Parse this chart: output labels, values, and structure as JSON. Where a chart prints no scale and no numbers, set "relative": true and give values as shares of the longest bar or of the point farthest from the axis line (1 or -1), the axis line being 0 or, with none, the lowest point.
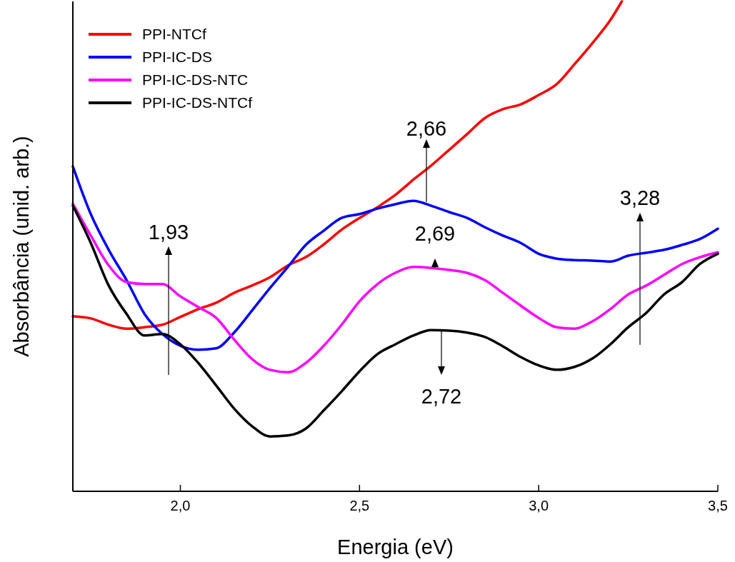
{
  "chart_data": {
    "type": "line",
    "relative": true,
    "xlabel": "Energia (eV)",
    "ylabel": "Absorbância (unid. arb.)",
    "xlim": [
      1.7,
      3.5
    ],
    "xticks": [
      {
        "value": 2.0,
        "label": "2,0"
      },
      {
        "value": 2.5,
        "label": "2,5"
      },
      {
        "value": 3.0,
        "label": "3,0"
      },
      {
        "value": 3.5,
        "label": "3,5"
      }
    ],
    "x": [
      1.7,
      1.75,
      1.8,
      1.85,
      1.9,
      1.95,
      2.0,
      2.05,
      2.1,
      2.15,
      2.2,
      2.25,
      2.3,
      2.35,
      2.4,
      2.45,
      2.5,
      2.55,
      2.6,
      2.65,
      2.7,
      2.75,
      2.8,
      2.85,
      2.9,
      2.95,
      3.0,
      3.05,
      3.1,
      3.15,
      3.2,
      3.25,
      3.3,
      3.35,
      3.4,
      3.45,
      3.5
    ],
    "legend": "top left",
    "grid": false,
    "line_style": "solid",
    "series": [
      {
        "name": "PPI-NTCf",
        "color": "#ff0000",
        "x": [
          1.7,
          1.75,
          1.8,
          1.85,
          1.9,
          1.95,
          2.0,
          2.05,
          2.1,
          2.15,
          2.2,
          2.25,
          2.3,
          2.35,
          2.4,
          2.45,
          2.5,
          2.55,
          2.6,
          2.65,
          2.7,
          2.75,
          2.8,
          2.85,
          2.9,
          2.95,
          3.0,
          3.05,
          3.1,
          3.15,
          3.2,
          3.232
        ],
        "values": [
          0.357,
          0.353,
          0.34,
          0.332,
          0.335,
          0.34,
          0.356,
          0.372,
          0.385,
          0.405,
          0.42,
          0.437,
          0.461,
          0.478,
          0.504,
          0.534,
          0.558,
          0.58,
          0.605,
          0.636,
          0.665,
          0.697,
          0.729,
          0.762,
          0.78,
          0.79,
          0.809,
          0.831,
          0.872,
          0.915,
          0.962,
          1
        ]
      },
      {
        "name": "PPI-IC-DS",
        "color": "#0000ff",
        "values": [
          0.663,
          0.566,
          0.493,
          0.431,
          0.362,
          0.321,
          0.297,
          0.289,
          0.292,
          0.324,
          0.369,
          0.415,
          0.458,
          0.503,
          0.532,
          0.558,
          0.566,
          0.577,
          0.586,
          0.593,
          0.583,
          0.57,
          0.558,
          0.539,
          0.522,
          0.507,
          0.485,
          0.475,
          0.472,
          0.471,
          0.469,
          0.481,
          0.487,
          0.493,
          0.503,
          0.515,
          0.536
        ]
      },
      {
        "name": "PPI-IC-DS-NTC",
        "color": "#ff00ff",
        "values": [
          0.587,
          0.522,
          0.461,
          0.427,
          0.423,
          0.423,
          0.398,
          0.376,
          0.354,
          0.31,
          0.27,
          0.248,
          0.243,
          0.262,
          0.297,
          0.34,
          0.388,
          0.423,
          0.446,
          0.458,
          0.456,
          0.452,
          0.446,
          0.431,
          0.405,
          0.379,
          0.354,
          0.335,
          0.332,
          0.347,
          0.372,
          0.402,
          0.42,
          0.442,
          0.464,
          0.478,
          0.488
        ]
      },
      {
        "name": "PPI-IC-DS-NTCf",
        "color": "#000000",
        "values": [
          0.583,
          0.507,
          0.42,
          0.362,
          0.318,
          0.321,
          0.3,
          0.262,
          0.216,
          0.169,
          0.133,
          0.112,
          0.114,
          0.128,
          0.165,
          0.204,
          0.245,
          0.28,
          0.3,
          0.318,
          0.329,
          0.328,
          0.324,
          0.315,
          0.296,
          0.274,
          0.257,
          0.248,
          0.254,
          0.271,
          0.3,
          0.335,
          0.364,
          0.402,
          0.427,
          0.464,
          0.485
        ]
      }
    ],
    "annotations": [
      "1,93",
      "2,66",
      "2,69",
      "2,72",
      "3,28"
    ]
  }
}
